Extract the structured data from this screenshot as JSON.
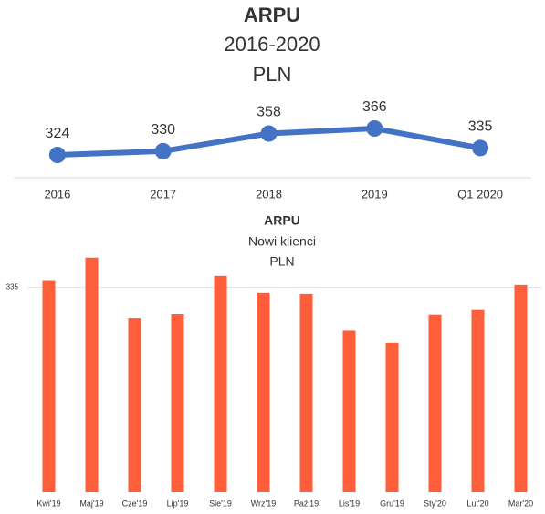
{
  "chart_data": [
    {
      "type": "line",
      "title": "ARPU",
      "subtitle": [
        "2016-2020",
        "PLN"
      ],
      "categories": [
        "2016",
        "2017",
        "2018",
        "2019",
        "Q1 2020"
      ],
      "values": [
        324,
        330,
        358,
        366,
        335
      ],
      "color": "#4472c4"
    },
    {
      "type": "bar",
      "title": "ARPU",
      "subtitle": [
        "Nowi klienci",
        "PLN"
      ],
      "categories": [
        "Kwi'19",
        "Maj'19",
        "Cze'19",
        "Lip'19",
        "Sie'19",
        "Wrz'19",
        "Paź'19",
        "Lis'19",
        "Gru'19",
        "Sty'20",
        "Lut'20",
        "Mar'20"
      ],
      "values": [
        347,
        384,
        285,
        291,
        354,
        327,
        324,
        265,
        245,
        290,
        299,
        339
      ],
      "color": "#ff5e3a",
      "ylim": [
        0,
        400
      ],
      "yticks": [
        335
      ],
      "grid": true
    }
  ]
}
